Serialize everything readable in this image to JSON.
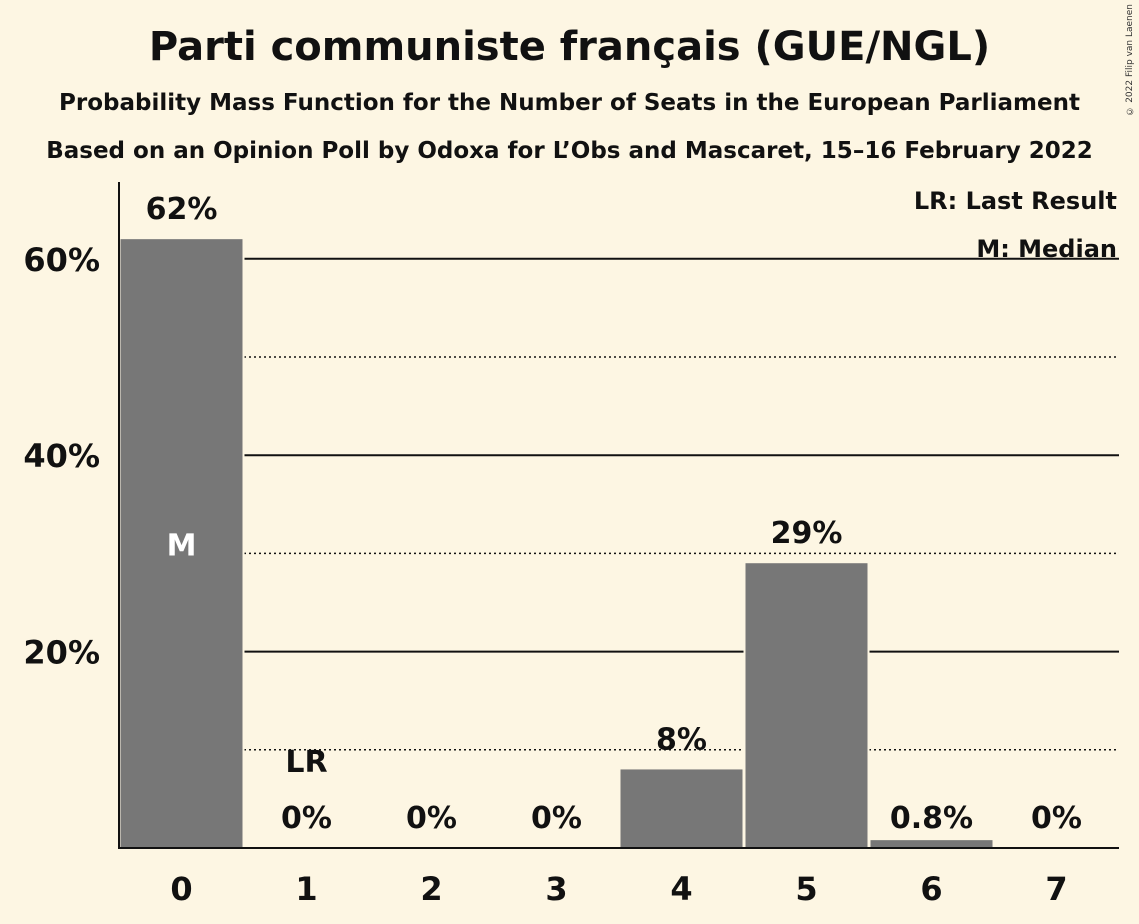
{
  "header": {
    "title": "Parti communiste français (GUE/NGL)",
    "subtitle": "Probability Mass Function for the Number of Seats in the European Parliament",
    "source": "Based on an Opinion Poll by Odoxa for L’Obs and Mascaret, 15–16 February 2022",
    "copyright": "© 2022 Filip van Laenen"
  },
  "legend": {
    "last_result": "LR: Last Result",
    "median": "M: Median"
  },
  "chart_data": {
    "type": "bar",
    "title": "Parti communiste français (GUE/NGL)",
    "categories": [
      "0",
      "1",
      "2",
      "3",
      "4",
      "5",
      "6",
      "7"
    ],
    "values": [
      62,
      0,
      0,
      0,
      8,
      29,
      0.8,
      0
    ],
    "labels": [
      "62%",
      "0%",
      "0%",
      "0%",
      "8%",
      "29%",
      "0.8%",
      "0%"
    ],
    "ylim": [
      0,
      68
    ],
    "yticks": [
      {
        "value": 20,
        "label": "20%"
      },
      {
        "value": 40,
        "label": "40%"
      },
      {
        "value": 60,
        "label": "60%"
      }
    ],
    "minor_gridlines": [
      10,
      30,
      50
    ],
    "median_index": 0,
    "median_label": "M",
    "last_result_index": 1,
    "last_result_label": "LR",
    "bar_color": "#777777",
    "grid": true,
    "legend_position": "top-right"
  }
}
